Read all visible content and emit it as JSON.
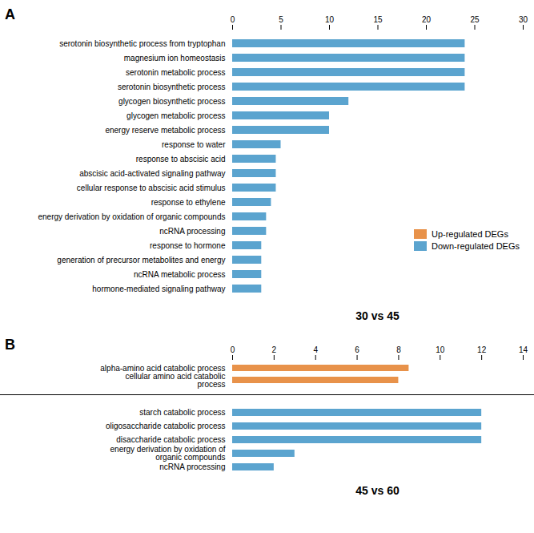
{
  "chart_data": [
    {
      "type": "bar",
      "orientation": "horizontal",
      "xlabel": "30 vs 45",
      "annotations": [
        "A"
      ],
      "categories": [
        "serotonin biosynthetic process from tryptophan",
        "magnesium ion homeostasis",
        "serotonin metabolic process",
        "serotonin biosynthetic process",
        "glycogen biosynthetic process",
        "glycogen metabolic process",
        "energy reserve metabolic process",
        "response to water",
        "response to abscisic acid",
        "abscisic acid-activated signaling pathway",
        "cellular response to abscisic acid stimulus",
        "response to ethylene",
        "energy derivation by oxidation of organic compounds",
        "ncRNA processing",
        "response to hormone",
        "generation of precursor metabolites and energy",
        "ncRNA metabolic process",
        "hormone-mediated signaling pathway"
      ],
      "series": [
        {
          "name": "Up-regulated DEGs",
          "color": "#E8924A",
          "values": [
            null,
            null,
            null,
            null,
            null,
            null,
            null,
            null,
            null,
            null,
            null,
            null,
            null,
            null,
            null,
            null,
            null,
            null
          ]
        },
        {
          "name": "Down-regulated DEGs",
          "color": "#5BA4CF",
          "values": [
            24,
            24,
            24,
            24,
            12,
            10,
            10,
            5,
            4.5,
            4.5,
            4.5,
            4,
            3.5,
            3.5,
            3,
            3,
            3,
            3
          ]
        }
      ],
      "xlim": [
        0,
        30
      ],
      "xticks": [
        0,
        5,
        10,
        15,
        20,
        25,
        30
      ],
      "legend": "lower right",
      "grid": false
    },
    {
      "type": "bar",
      "orientation": "horizontal",
      "annotations": [
        "B"
      ],
      "categories": [
        "alpha-amino acid catabolic process",
        "cellular amino acid catabolic\nprocess"
      ],
      "values": [
        8.5,
        8
      ],
      "color": "#E8924A",
      "xlim": [
        0,
        14
      ],
      "xticks": [
        0,
        2,
        4,
        6,
        8,
        10,
        12,
        14
      ],
      "grid": false
    },
    {
      "type": "bar",
      "orientation": "horizontal",
      "xlabel": "45 vs 60",
      "categories": [
        "starch catabolic process",
        "oligosaccharide catabolic process",
        "disaccharide catabolic process",
        "energy derivation by oxidation of\norganic compounds",
        "ncRNA processing"
      ],
      "values": [
        12,
        12,
        12,
        3,
        2
      ],
      "color": "#5BA4CF",
      "xlim": [
        0,
        14
      ],
      "xticks": [
        0,
        2,
        4,
        6,
        8,
        10,
        12,
        14
      ],
      "tick_labels": "y",
      "grid": false
    }
  ]
}
